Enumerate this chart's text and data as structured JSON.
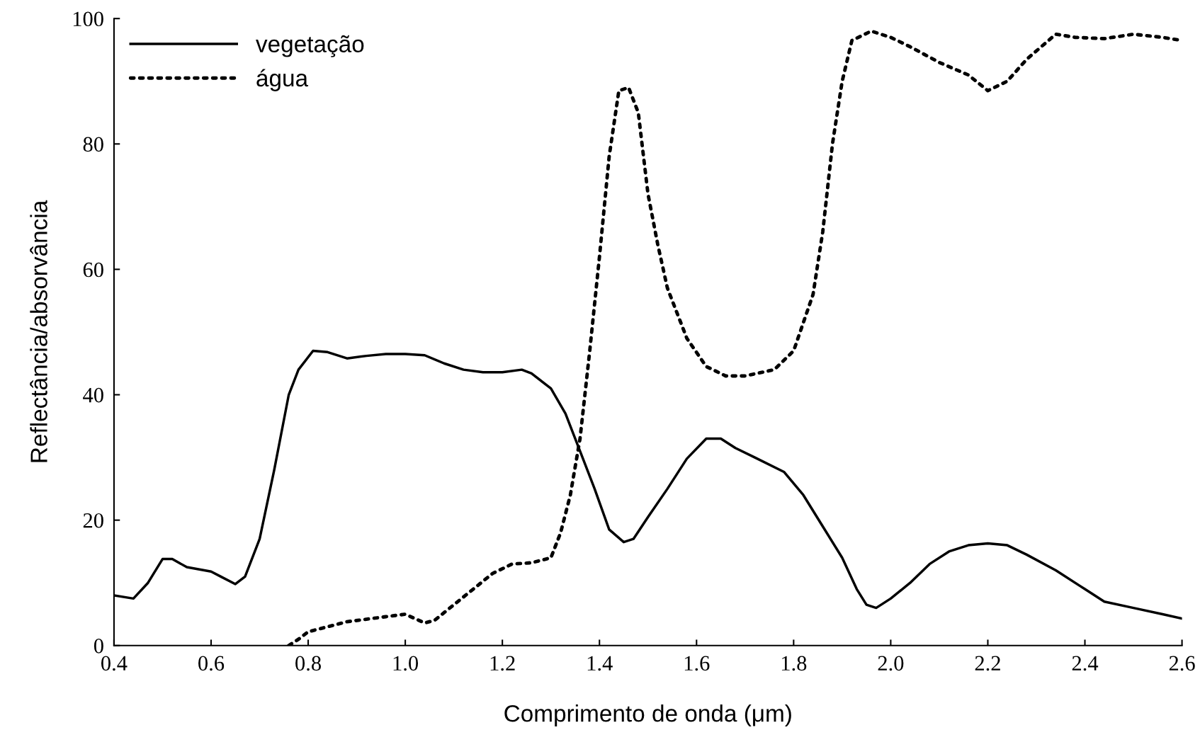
{
  "chart_data": {
    "type": "line",
    "xlabel": "Comprimento de onda (μm)",
    "ylabel": "Reflectância/absorvância",
    "xlim": [
      0.4,
      2.6
    ],
    "ylim": [
      0,
      100
    ],
    "xticks": [
      0.4,
      0.6,
      0.8,
      {
        "value": 1.0,
        "label": "1.0"
      },
      1.2,
      1.4,
      1.6,
      1.8,
      {
        "value": 2.0,
        "label": "2.0"
      },
      2.2,
      2.4,
      2.6
    ],
    "yticks": [
      0,
      20,
      40,
      60,
      80,
      100
    ],
    "grid": false,
    "legend": "top left",
    "marker": "none",
    "series": [
      {
        "name": "vegetação",
        "color": "#000000",
        "line_style": "solid",
        "x": [
          0.4,
          0.44,
          0.47,
          0.5,
          0.52,
          0.55,
          0.6,
          0.62,
          0.65,
          0.67,
          0.7,
          0.73,
          0.76,
          0.78,
          0.81,
          0.84,
          0.88,
          0.92,
          0.96,
          1.0,
          1.04,
          1.08,
          1.12,
          1.16,
          1.2,
          1.24,
          1.26,
          1.3,
          1.33,
          1.36,
          1.39,
          1.42,
          1.45,
          1.47,
          1.5,
          1.54,
          1.58,
          1.62,
          1.65,
          1.68,
          1.72,
          1.78,
          1.82,
          1.86,
          1.9,
          1.93,
          1.95,
          1.97,
          2.0,
          2.04,
          2.08,
          2.12,
          2.16,
          2.2,
          2.24,
          2.28,
          2.34,
          2.4,
          2.44,
          2.5,
          2.56,
          2.6
        ],
        "values": [
          8,
          7.5,
          10,
          13.8,
          13.8,
          12.5,
          11.8,
          11,
          9.8,
          11,
          17,
          28,
          40,
          44,
          47,
          46.8,
          45.8,
          46.2,
          46.5,
          46.5,
          46.3,
          45,
          44,
          43.6,
          43.6,
          44,
          43.4,
          41,
          37,
          31,
          25,
          18.5,
          16.5,
          17,
          20.5,
          25,
          29.8,
          33,
          33,
          31.5,
          30,
          27.7,
          24,
          19,
          14,
          9,
          6.5,
          6,
          7.5,
          10,
          13,
          15,
          16,
          16.3,
          16,
          14.5,
          12,
          9,
          7,
          6,
          5,
          4.3
        ]
      },
      {
        "name": "água",
        "color": "#000000",
        "line_style": "dotted",
        "x": [
          0.76,
          0.78,
          0.8,
          0.84,
          0.88,
          0.92,
          0.96,
          1.0,
          1.02,
          1.04,
          1.06,
          1.1,
          1.14,
          1.18,
          1.22,
          1.26,
          1.3,
          1.32,
          1.34,
          1.36,
          1.38,
          1.4,
          1.42,
          1.44,
          1.46,
          1.48,
          1.5,
          1.52,
          1.54,
          1.58,
          1.62,
          1.66,
          1.7,
          1.76,
          1.8,
          1.84,
          1.86,
          1.88,
          1.9,
          1.92,
          1.96,
          2.0,
          2.04,
          2.1,
          2.16,
          2.2,
          2.24,
          2.28,
          2.34,
          2.38,
          2.44,
          2.5,
          2.56,
          2.6
        ],
        "values": [
          0,
          1,
          2.2,
          3,
          3.8,
          4.2,
          4.6,
          5,
          4.3,
          3.6,
          4,
          6.5,
          9,
          11.5,
          13,
          13.2,
          14,
          18,
          24,
          33,
          47,
          62,
          78,
          88.5,
          89,
          85,
          72,
          64,
          57,
          49,
          44.5,
          43,
          43,
          44,
          47,
          56,
          66,
          80,
          90,
          96.5,
          98,
          97,
          95.5,
          93,
          91,
          88.5,
          90,
          93.5,
          97.5,
          97,
          96.8,
          97.5,
          97,
          96.5
        ]
      }
    ]
  }
}
